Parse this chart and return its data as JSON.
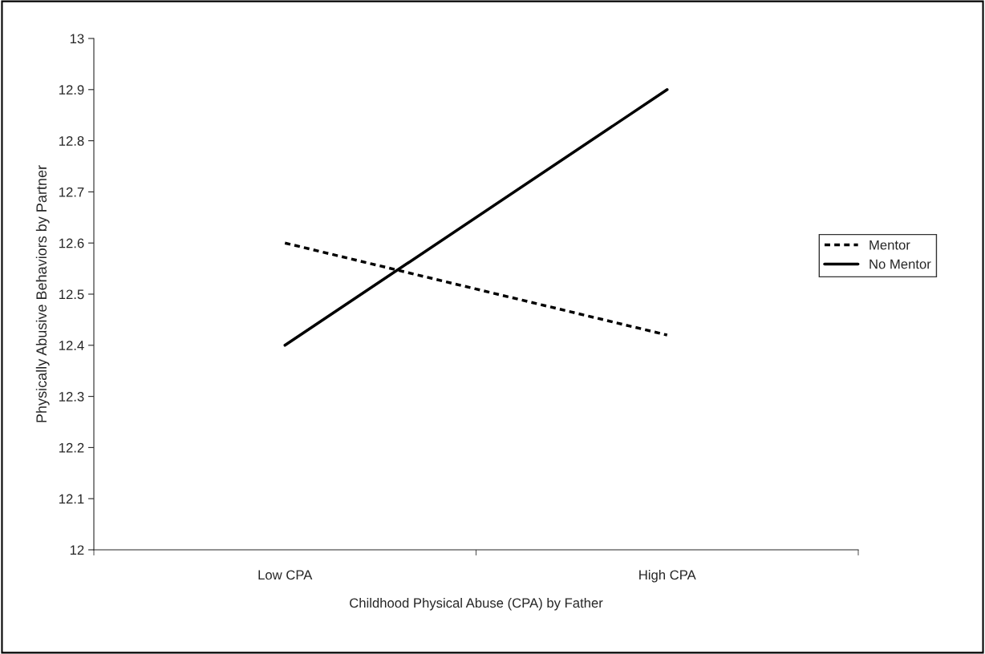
{
  "chart_data": {
    "type": "line",
    "xlabel": "Childhood Physical Abuse (CPA) by Father",
    "ylabel": "Physically Abusive Behaviors by Partner",
    "categories": [
      "Low CPA",
      "High CPA"
    ],
    "series": [
      {
        "name": "Mentor",
        "color": "#000000",
        "line_style": "dashed",
        "values": [
          12.6,
          12.42
        ]
      },
      {
        "name": "No Mentor",
        "color": "#000000",
        "line_style": "solid",
        "values": [
          12.4,
          12.9
        ]
      }
    ],
    "ylim": [
      12,
      13
    ],
    "yticks": [
      12,
      12.1,
      12.2,
      12.3,
      12.4,
      12.5,
      12.6,
      12.7,
      12.8,
      12.9,
      13
    ],
    "grid": false,
    "legend": "right",
    "marker": "none"
  }
}
